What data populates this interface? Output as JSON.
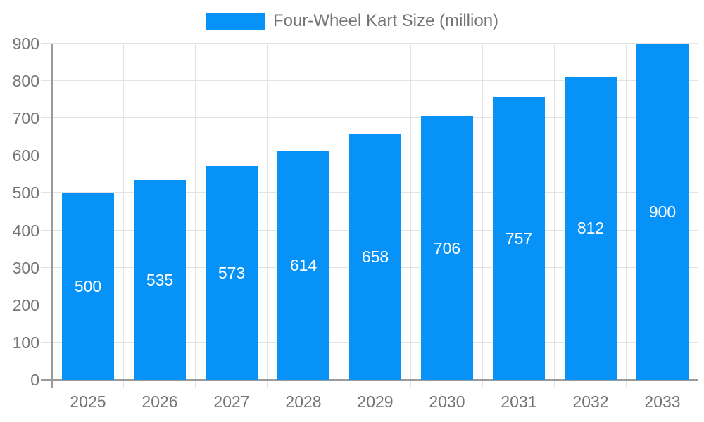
{
  "legend": {
    "label": "Four-Wheel Kart Size (million)"
  },
  "colors": {
    "bar": "#0692F7",
    "grid": "#E3E3E3",
    "axis": "#9B9B9B",
    "tick_label": "#757575",
    "value_label": "#FFFFFF",
    "background": "#FFFFFF"
  },
  "chart_data": {
    "type": "bar",
    "title": "",
    "series_name": "Four-Wheel Kart Size (million)",
    "categories": [
      "2025",
      "2026",
      "2027",
      "2028",
      "2029",
      "2030",
      "2031",
      "2032",
      "2033"
    ],
    "values": [
      500,
      535,
      573,
      614,
      658,
      706,
      757,
      812,
      900
    ],
    "xlabel": "",
    "ylabel": "",
    "ylim": [
      0,
      900
    ],
    "yticks": [
      0,
      100,
      200,
      300,
      400,
      500,
      600,
      700,
      800,
      900
    ],
    "grid": true,
    "bar_labels_position": "center",
    "legend_position": "top-center"
  }
}
